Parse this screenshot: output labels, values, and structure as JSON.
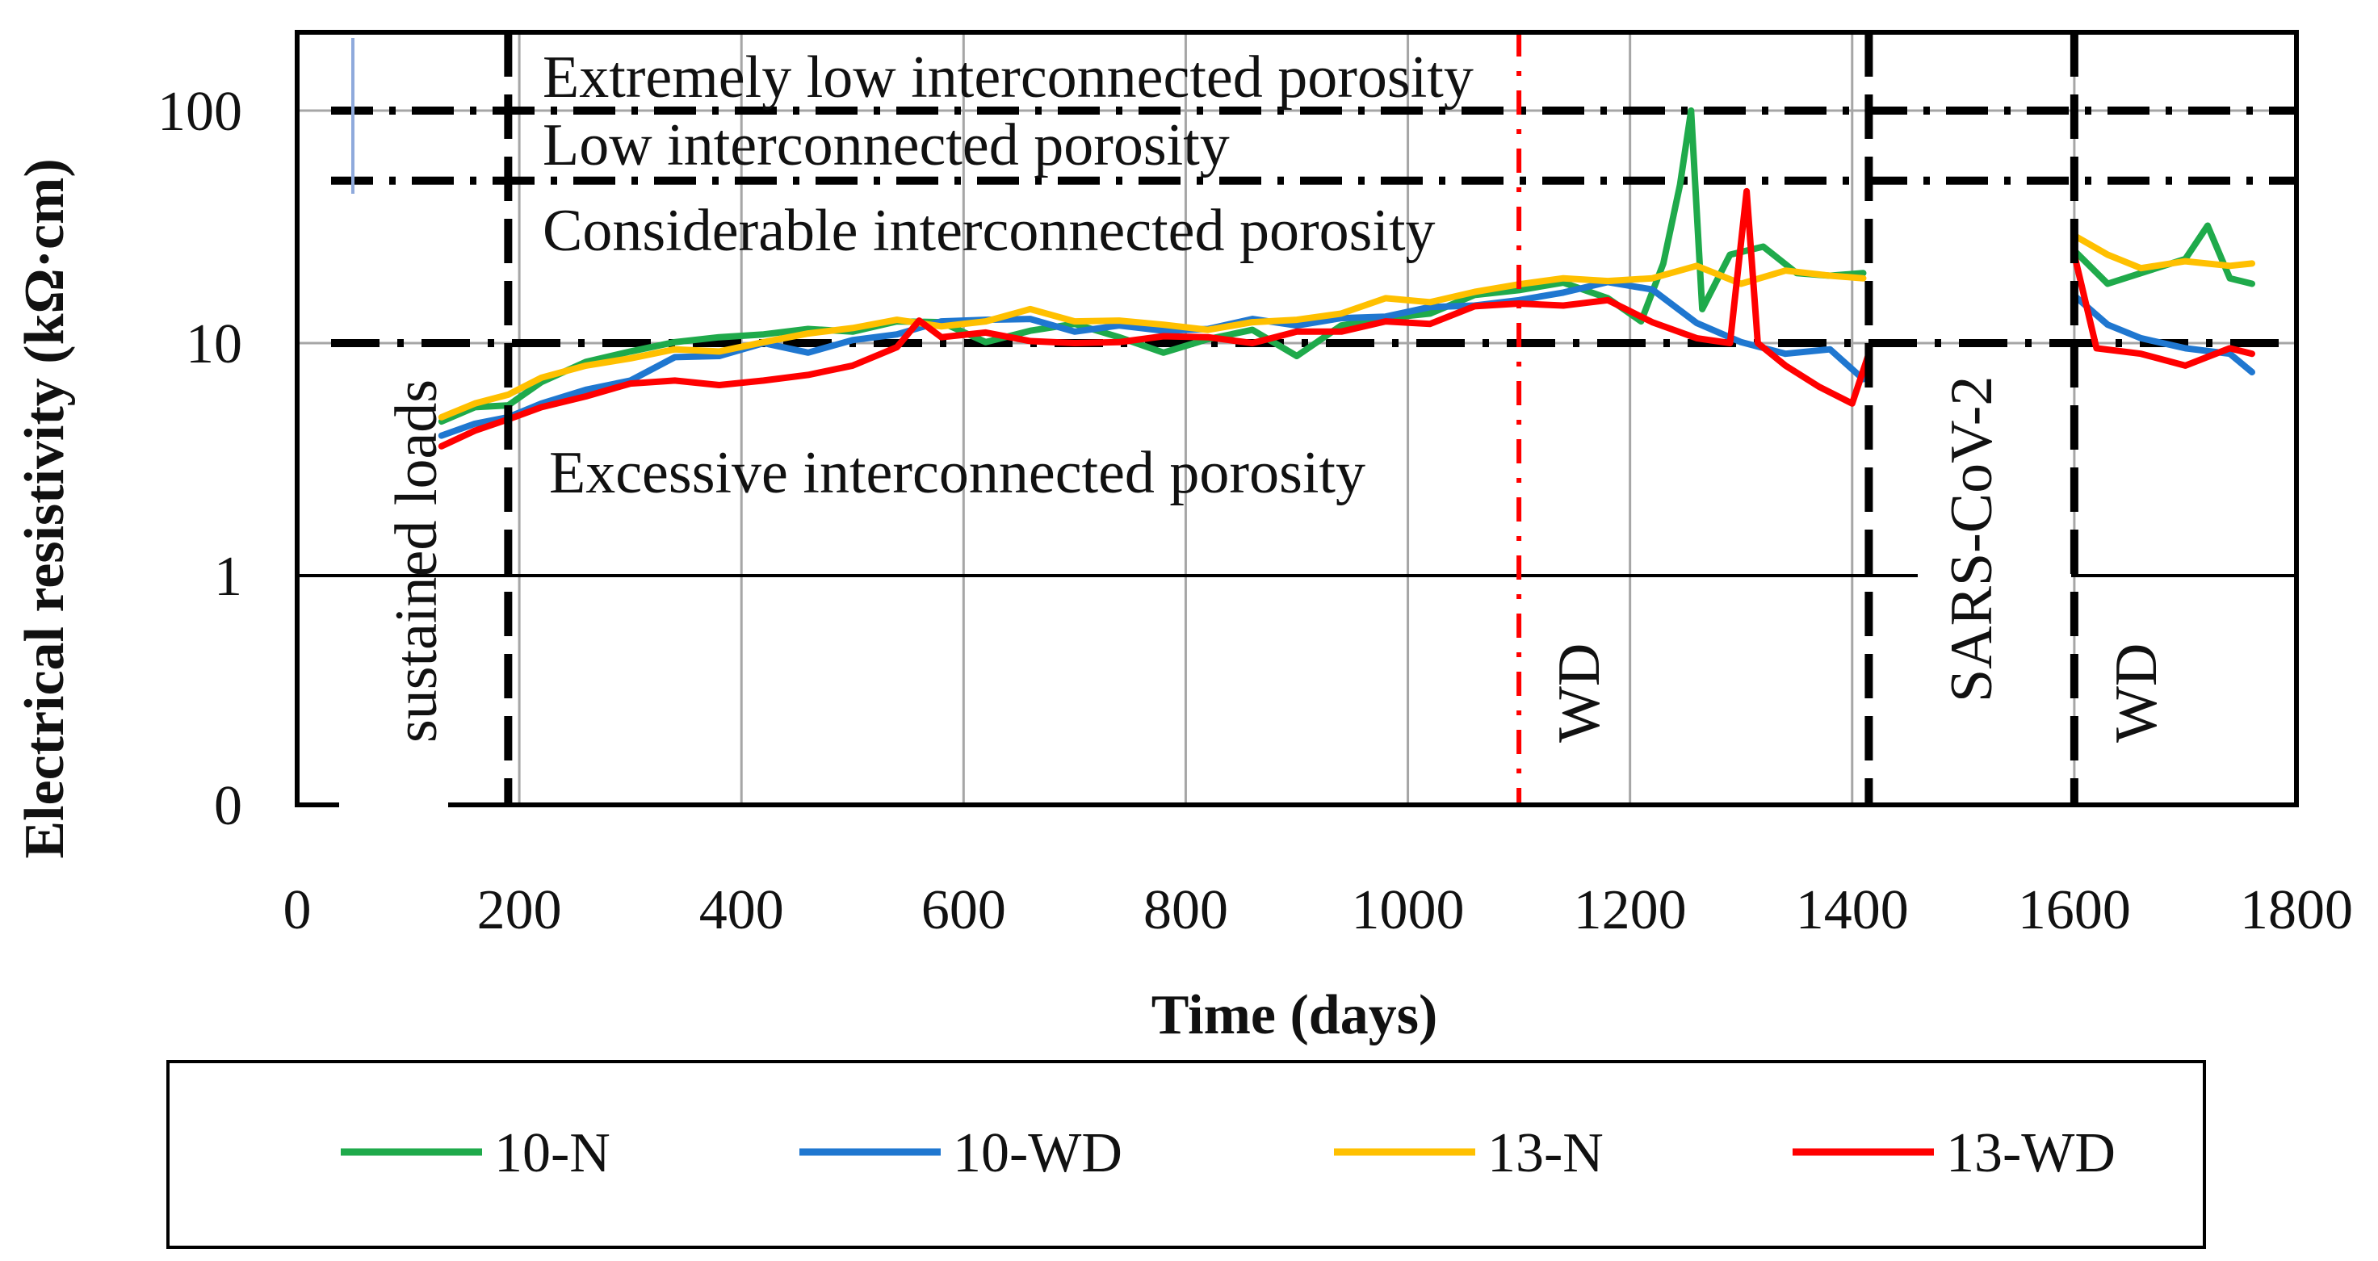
{
  "chart_data": {
    "type": "line",
    "xlabel": "Time (days)",
    "ylabel": "Electrical resistivity (kΩ·cm)",
    "xlim": [
      0,
      1800
    ],
    "y_scale": "log",
    "y_ticks": [
      "0",
      "1",
      "10",
      "100"
    ],
    "x_ticks": [
      "0",
      "200",
      "400",
      "600",
      "800",
      "1000",
      "1200",
      "1400",
      "1600",
      "1800"
    ],
    "grid": true,
    "legend_position": "bottom",
    "colors": {
      "10-N": "#1faa4b",
      "10-WD": "#1f77d0",
      "13-N": "#ffc000",
      "13-WD": "#ff0000",
      "wd_line": "#ff0000",
      "threshold": "#000000"
    },
    "thresholds": [
      {
        "value": 100,
        "label": "Extremely low interconnected porosity"
      },
      {
        "value": 50,
        "label": "Low interconnected porosity"
      },
      {
        "value": 10,
        "label": "Considerable interconnected porosity"
      },
      {
        "value": 1,
        "label": "Excessive interconnected porosity"
      }
    ],
    "vertical_markers": [
      {
        "x": 190,
        "label": "sustained loads"
      },
      {
        "x": 1100,
        "label": "WD"
      },
      {
        "x": 1415,
        "label": "SARS-CoV-2"
      },
      {
        "x": 1600,
        "label": "WD"
      }
    ],
    "series": [
      {
        "name": "10-N",
        "points": [
          [
            130,
            4.6
          ],
          [
            160,
            5.3
          ],
          [
            190,
            5.4
          ],
          [
            220,
            6.8
          ],
          [
            260,
            8.3
          ],
          [
            300,
            9.2
          ],
          [
            340,
            10.1
          ],
          [
            380,
            10.6
          ],
          [
            420,
            10.9
          ],
          [
            460,
            11.5
          ],
          [
            500,
            11.2
          ],
          [
            540,
            12.4
          ],
          [
            580,
            12.3
          ],
          [
            620,
            10.1
          ],
          [
            660,
            11.3
          ],
          [
            700,
            12.1
          ],
          [
            740,
            10.6
          ],
          [
            780,
            9.1
          ],
          [
            820,
            10.4
          ],
          [
            860,
            11.4
          ],
          [
            900,
            8.8
          ],
          [
            940,
            11.9
          ],
          [
            980,
            12.8
          ],
          [
            1020,
            13.4
          ],
          [
            1060,
            16.1
          ],
          [
            1100,
            16.9
          ],
          [
            1140,
            18.2
          ],
          [
            1180,
            15.6
          ],
          [
            1210,
            12.4
          ],
          [
            1230,
            22.0
          ],
          [
            1245,
            48.0
          ],
          [
            1255,
            100.0
          ],
          [
            1265,
            14.0
          ],
          [
            1290,
            24.0
          ],
          [
            1320,
            26.0
          ],
          [
            1350,
            20.0
          ],
          [
            1380,
            19.5
          ],
          [
            1410,
            20.0
          ],
          [
            1600,
            25.0
          ],
          [
            1630,
            18.0
          ],
          [
            1660,
            20.0
          ],
          [
            1700,
            23.0
          ],
          [
            1720,
            32.0
          ],
          [
            1740,
            19.0
          ],
          [
            1760,
            18.0
          ]
        ]
      },
      {
        "name": "10-WD",
        "points": [
          [
            130,
            4.0
          ],
          [
            160,
            4.5
          ],
          [
            190,
            4.8
          ],
          [
            220,
            5.5
          ],
          [
            260,
            6.3
          ],
          [
            300,
            6.9
          ],
          [
            340,
            8.7
          ],
          [
            380,
            8.8
          ],
          [
            420,
            10.0
          ],
          [
            460,
            9.1
          ],
          [
            500,
            10.3
          ],
          [
            540,
            10.9
          ],
          [
            580,
            12.4
          ],
          [
            620,
            12.6
          ],
          [
            660,
            12.7
          ],
          [
            700,
            11.2
          ],
          [
            740,
            11.9
          ],
          [
            780,
            11.3
          ],
          [
            820,
            11.5
          ],
          [
            860,
            12.7
          ],
          [
            900,
            11.9
          ],
          [
            940,
            12.8
          ],
          [
            980,
            13.0
          ],
          [
            1020,
            14.3
          ],
          [
            1060,
            14.5
          ],
          [
            1100,
            15.3
          ],
          [
            1140,
            16.5
          ],
          [
            1180,
            18.3
          ],
          [
            1220,
            17.0
          ],
          [
            1260,
            12.2
          ],
          [
            1300,
            10.1
          ],
          [
            1340,
            9.0
          ],
          [
            1380,
            9.4
          ],
          [
            1410,
            7.0
          ],
          [
            1600,
            16.0
          ],
          [
            1630,
            12.0
          ],
          [
            1660,
            10.5
          ],
          [
            1700,
            9.5
          ],
          [
            1740,
            9.0
          ],
          [
            1760,
            7.5
          ]
        ]
      },
      {
        "name": "13-N",
        "points": [
          [
            130,
            4.8
          ],
          [
            160,
            5.5
          ],
          [
            190,
            6.0
          ],
          [
            220,
            7.1
          ],
          [
            260,
            8.0
          ],
          [
            300,
            8.6
          ],
          [
            340,
            9.4
          ],
          [
            380,
            9.2
          ],
          [
            420,
            10.1
          ],
          [
            460,
            11.0
          ],
          [
            500,
            11.6
          ],
          [
            540,
            12.6
          ],
          [
            580,
            11.8
          ],
          [
            620,
            12.4
          ],
          [
            660,
            14.0
          ],
          [
            700,
            12.4
          ],
          [
            740,
            12.5
          ],
          [
            780,
            12.0
          ],
          [
            820,
            11.4
          ],
          [
            860,
            12.3
          ],
          [
            900,
            12.6
          ],
          [
            940,
            13.4
          ],
          [
            980,
            15.6
          ],
          [
            1020,
            15.0
          ],
          [
            1060,
            16.6
          ],
          [
            1100,
            17.9
          ],
          [
            1140,
            19.0
          ],
          [
            1180,
            18.5
          ],
          [
            1220,
            19.0
          ],
          [
            1260,
            21.5
          ],
          [
            1300,
            18.0
          ],
          [
            1340,
            20.5
          ],
          [
            1380,
            19.5
          ],
          [
            1410,
            19.0
          ],
          [
            1600,
            29.0
          ],
          [
            1630,
            24.0
          ],
          [
            1660,
            21.0
          ],
          [
            1700,
            22.5
          ],
          [
            1740,
            21.5
          ],
          [
            1760,
            22.0
          ]
        ]
      },
      {
        "name": "13-WD",
        "points": [
          [
            130,
            3.6
          ],
          [
            160,
            4.2
          ],
          [
            190,
            4.7
          ],
          [
            220,
            5.3
          ],
          [
            260,
            5.9
          ],
          [
            300,
            6.7
          ],
          [
            340,
            6.9
          ],
          [
            380,
            6.6
          ],
          [
            420,
            6.9
          ],
          [
            460,
            7.3
          ],
          [
            500,
            8.0
          ],
          [
            540,
            9.6
          ],
          [
            560,
            12.5
          ],
          [
            580,
            10.6
          ],
          [
            620,
            11.1
          ],
          [
            660,
            10.2
          ],
          [
            700,
            10.0
          ],
          [
            740,
            10.1
          ],
          [
            780,
            10.7
          ],
          [
            820,
            10.6
          ],
          [
            860,
            10.0
          ],
          [
            900,
            11.2
          ],
          [
            940,
            11.2
          ],
          [
            980,
            12.4
          ],
          [
            1020,
            12.1
          ],
          [
            1060,
            14.4
          ],
          [
            1100,
            14.8
          ],
          [
            1140,
            14.5
          ],
          [
            1180,
            15.3
          ],
          [
            1220,
            12.3
          ],
          [
            1260,
            10.5
          ],
          [
            1290,
            10.0
          ],
          [
            1305,
            45.0
          ],
          [
            1315,
            10.0
          ],
          [
            1340,
            8.0
          ],
          [
            1370,
            6.5
          ],
          [
            1400,
            5.5
          ],
          [
            1415,
            9.0
          ],
          [
            1600,
            24.0
          ],
          [
            1620,
            9.5
          ],
          [
            1660,
            9.0
          ],
          [
            1700,
            8.0
          ],
          [
            1740,
            9.5
          ],
          [
            1760,
            9.0
          ]
        ]
      }
    ]
  }
}
